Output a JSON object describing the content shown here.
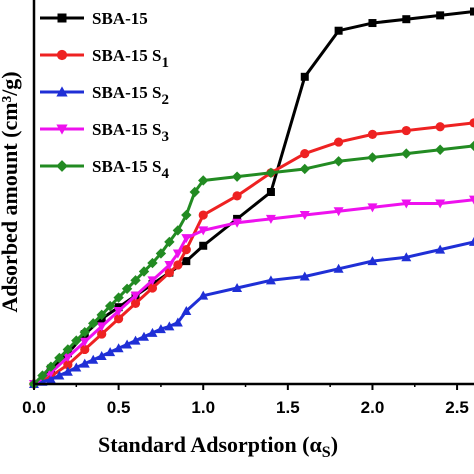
{
  "chart_data": {
    "type": "line",
    "xlabel": "Standard Adsorption (α",
    "xlabel_sub": "S",
    "ylabel": "Adsorbed amount (cm³/g)",
    "xlim": [
      0,
      2.6
    ],
    "ylim": [
      0,
      1.0
    ],
    "xticks": [
      0.0,
      0.5,
      1.0,
      1.5,
      2.0,
      2.5
    ],
    "xtick_labels": [
      "0.0",
      "0.5",
      "1.0",
      "1.5",
      "2.0",
      "2.5"
    ],
    "legend_position": "top-left",
    "series": [
      {
        "name": "SBA-15",
        "name_sub": "",
        "color": "#000000",
        "marker": "square",
        "x": [
          0.0,
          0.1,
          0.2,
          0.3,
          0.4,
          0.5,
          0.6,
          0.7,
          0.8,
          0.9,
          1.0,
          1.2,
          1.4,
          1.6,
          1.8,
          2.0,
          2.2,
          2.4,
          2.6
        ],
        "y": [
          0.0,
          0.04,
          0.08,
          0.13,
          0.17,
          0.2,
          0.23,
          0.26,
          0.29,
          0.32,
          0.36,
          0.43,
          0.5,
          0.8,
          0.92,
          0.94,
          0.95,
          0.96,
          0.97
        ]
      },
      {
        "name": "SBA-15 S",
        "name_sub": "1",
        "color": "#ee2222",
        "marker": "circle",
        "x": [
          0.0,
          0.1,
          0.2,
          0.3,
          0.4,
          0.5,
          0.6,
          0.7,
          0.8,
          0.85,
          0.9,
          1.0,
          1.2,
          1.4,
          1.6,
          1.8,
          2.0,
          2.2,
          2.4,
          2.6
        ],
        "y": [
          0.0,
          0.02,
          0.05,
          0.09,
          0.13,
          0.17,
          0.21,
          0.25,
          0.29,
          0.31,
          0.35,
          0.44,
          0.49,
          0.55,
          0.6,
          0.63,
          0.65,
          0.66,
          0.67,
          0.68
        ]
      },
      {
        "name": "SBA-15 S",
        "name_sub": "2",
        "color": "#1f2fd6",
        "marker": "triangle-up",
        "x": [
          0.0,
          0.05,
          0.1,
          0.15,
          0.2,
          0.25,
          0.3,
          0.35,
          0.4,
          0.45,
          0.5,
          0.55,
          0.6,
          0.65,
          0.7,
          0.75,
          0.8,
          0.85,
          0.9,
          1.0,
          1.2,
          1.4,
          1.6,
          1.8,
          2.0,
          2.2,
          2.4,
          2.6
        ],
        "y": [
          0.0,
          0.006,
          0.012,
          0.022,
          0.032,
          0.043,
          0.053,
          0.063,
          0.073,
          0.083,
          0.093,
          0.103,
          0.113,
          0.123,
          0.133,
          0.143,
          0.15,
          0.16,
          0.19,
          0.23,
          0.25,
          0.27,
          0.28,
          0.3,
          0.32,
          0.33,
          0.35,
          0.37
        ]
      },
      {
        "name": "SBA-15 S",
        "name_sub": "3",
        "color": "#ee11ee",
        "marker": "triangle-down",
        "x": [
          0.0,
          0.1,
          0.2,
          0.3,
          0.4,
          0.5,
          0.6,
          0.7,
          0.8,
          0.85,
          0.9,
          1.0,
          1.2,
          1.4,
          1.6,
          1.8,
          2.0,
          2.2,
          2.4,
          2.6
        ],
        "y": [
          0.0,
          0.03,
          0.07,
          0.11,
          0.15,
          0.19,
          0.23,
          0.27,
          0.31,
          0.34,
          0.38,
          0.4,
          0.42,
          0.43,
          0.44,
          0.45,
          0.46,
          0.47,
          0.47,
          0.48
        ]
      },
      {
        "name": "SBA-15 S",
        "name_sub": "4",
        "color": "#228b22",
        "marker": "diamond",
        "x": [
          0.0,
          0.05,
          0.1,
          0.15,
          0.2,
          0.25,
          0.3,
          0.35,
          0.4,
          0.45,
          0.5,
          0.55,
          0.6,
          0.65,
          0.7,
          0.75,
          0.8,
          0.85,
          0.9,
          0.95,
          1.0,
          1.2,
          1.4,
          1.6,
          1.8,
          2.0,
          2.2,
          2.4,
          2.6
        ],
        "y": [
          0.0,
          0.022,
          0.045,
          0.068,
          0.09,
          0.113,
          0.135,
          0.158,
          0.18,
          0.203,
          0.225,
          0.248,
          0.27,
          0.293,
          0.315,
          0.34,
          0.37,
          0.4,
          0.44,
          0.5,
          0.53,
          0.54,
          0.55,
          0.56,
          0.58,
          0.59,
          0.6,
          0.61,
          0.62
        ]
      }
    ]
  }
}
